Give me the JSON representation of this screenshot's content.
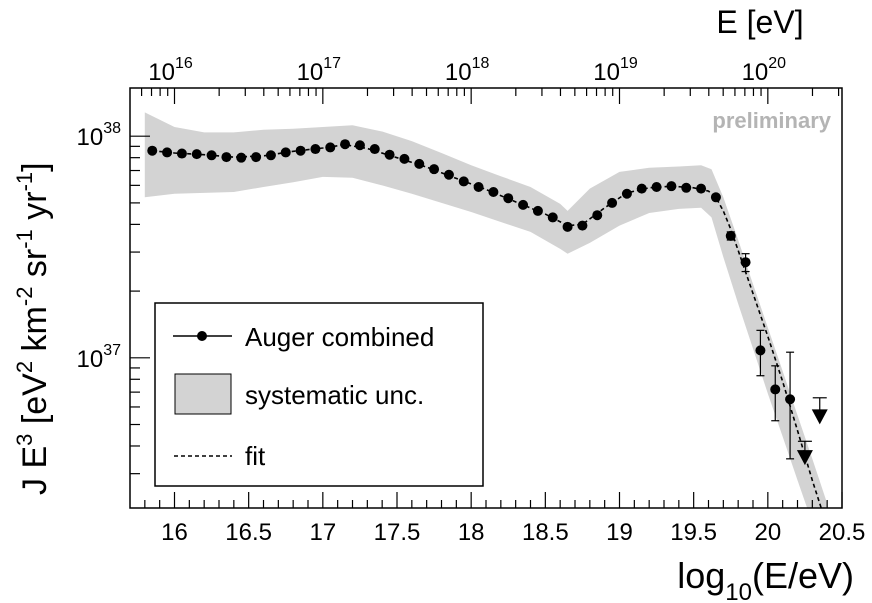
{
  "chart_data": {
    "type": "scatter",
    "title": "",
    "xlabel": {
      "base": "log",
      "sub": "10",
      "rest": "(E/eV)"
    },
    "ylabel": {
      "parts": [
        "J E",
        "3",
        " [eV",
        "2",
        " km",
        "-2",
        " sr",
        "-1",
        " yr",
        "-1",
        "]"
      ]
    },
    "top_axis_label": "E [eV]",
    "annotation": "preliminary",
    "xlim": [
      15.7,
      20.5
    ],
    "ylim": [
      2.1e+36,
      1.65e+38
    ],
    "yscale": "log",
    "x_ticks": [
      "16",
      "16.5",
      "17",
      "17.5",
      "18",
      "18.5",
      "19",
      "19.5",
      "20",
      "20.5"
    ],
    "x_tick_values": [
      16,
      16.5,
      17,
      17.5,
      18,
      18.5,
      19,
      19.5,
      20,
      20.5
    ],
    "y_ticks": [
      {
        "base": "10",
        "exp": "38",
        "value": 1e+38
      },
      {
        "base": "10",
        "exp": "37",
        "value": 1e+37
      }
    ],
    "top_ticks": [
      {
        "base": "10",
        "exp": "16",
        "value": 16
      },
      {
        "base": "10",
        "exp": "17",
        "value": 17
      },
      {
        "base": "10",
        "exp": "18",
        "value": 18
      },
      {
        "base": "10",
        "exp": "19",
        "value": 19
      },
      {
        "base": "10",
        "exp": "20",
        "value": 20
      }
    ],
    "legend": {
      "placement": "bottom-left",
      "entries": [
        "Auger combined",
        "systematic unc.",
        "fit"
      ]
    },
    "grid": false,
    "series": [
      {
        "name": "Auger combined",
        "points": [
          {
            "x": 15.85,
            "y": 8.6e+37
          },
          {
            "x": 15.95,
            "y": 8.45e+37
          },
          {
            "x": 16.05,
            "y": 8.35e+37
          },
          {
            "x": 16.15,
            "y": 8.3e+37
          },
          {
            "x": 16.25,
            "y": 8.2e+37
          },
          {
            "x": 16.35,
            "y": 8.05e+37
          },
          {
            "x": 16.45,
            "y": 8e+37
          },
          {
            "x": 16.55,
            "y": 8.05e+37
          },
          {
            "x": 16.65,
            "y": 8.2e+37
          },
          {
            "x": 16.75,
            "y": 8.45e+37
          },
          {
            "x": 16.85,
            "y": 8.6e+37
          },
          {
            "x": 16.95,
            "y": 8.75e+37
          },
          {
            "x": 17.05,
            "y": 8.9e+37
          },
          {
            "x": 17.15,
            "y": 9.2e+37
          },
          {
            "x": 17.25,
            "y": 9.1e+37
          },
          {
            "x": 17.35,
            "y": 8.75e+37
          },
          {
            "x": 17.45,
            "y": 8.25e+37
          },
          {
            "x": 17.55,
            "y": 7.9e+37
          },
          {
            "x": 17.65,
            "y": 7.5e+37
          },
          {
            "x": 17.75,
            "y": 7.1e+37
          },
          {
            "x": 17.85,
            "y": 6.7e+37
          },
          {
            "x": 17.95,
            "y": 6.25e+37
          },
          {
            "x": 18.05,
            "y": 5.9e+37
          },
          {
            "x": 18.15,
            "y": 5.6e+37
          },
          {
            "x": 18.25,
            "y": 5.25e+37
          },
          {
            "x": 18.35,
            "y": 4.9e+37
          },
          {
            "x": 18.45,
            "y": 4.6e+37
          },
          {
            "x": 18.55,
            "y": 4.3e+37
          },
          {
            "x": 18.65,
            "y": 3.9e+37
          },
          {
            "x": 18.75,
            "y": 3.95e+37
          },
          {
            "x": 18.85,
            "y": 4.4e+37
          },
          {
            "x": 18.95,
            "y": 5e+37
          },
          {
            "x": 19.05,
            "y": 5.5e+37
          },
          {
            "x": 19.15,
            "y": 5.8e+37
          },
          {
            "x": 19.25,
            "y": 5.9e+37
          },
          {
            "x": 19.35,
            "y": 5.95e+37
          },
          {
            "x": 19.45,
            "y": 5.85e+37
          },
          {
            "x": 19.55,
            "y": 5.8e+37
          },
          {
            "x": 19.65,
            "y": 5.3e+37
          },
          {
            "x": 19.75,
            "y": 3.55e+37,
            "err": 1.5e+36
          },
          {
            "x": 19.85,
            "y": 2.7e+37,
            "err": 2.5e+36
          },
          {
            "x": 19.95,
            "y": 1.08e+37,
            "err": 2.5e+36
          },
          {
            "x": 20.05,
            "y": 7.2e+36,
            "err": 2e+36
          },
          {
            "x": 20.15,
            "y": 6.5e+36,
            "err_up": 4.1e+36,
            "err_down": 3e+36
          }
        ],
        "upper_limits": [
          {
            "x": 20.25,
            "y": 3.6e+36,
            "top": 4.2e+36
          },
          {
            "x": 20.35,
            "y": 5.5e+36,
            "top": 6.6e+36
          }
        ]
      },
      {
        "name": "systematic unc.",
        "x": [
          15.8,
          16.0,
          16.2,
          16.4,
          16.6,
          16.8,
          17.0,
          17.2,
          17.4,
          17.6,
          17.8,
          18.0,
          18.2,
          18.4,
          18.6,
          18.65,
          18.8,
          19.0,
          19.2,
          19.4,
          19.55,
          19.62,
          19.7,
          19.8,
          19.9,
          20.0,
          20.1,
          20.2,
          20.3,
          20.4
        ],
        "upper": [
          1.28e+38,
          1.1e+38,
          1.04e+38,
          1.04e+38,
          1.07e+38,
          1.08e+38,
          1.1e+38,
          1.12e+38,
          1.05e+38,
          9.5e+37,
          8.4e+37,
          7.4e+37,
          6.6e+37,
          5.9e+37,
          4.95e+37,
          4.6e+37,
          5.8e+37,
          6.9e+37,
          7.2e+37,
          7.3e+37,
          7.4e+37,
          7.1e+37,
          5.3e+37,
          3.4e+37,
          2.15e+37,
          1.37e+37,
          8.7e+36,
          5.5e+36,
          3.5e+36,
          2.2e+36
        ],
        "lower": [
          5.3e+37,
          5.5e+37,
          5.55e+37,
          5.6e+37,
          5.9e+37,
          6.2e+37,
          6.55e+37,
          6.5e+37,
          6e+37,
          5.5e+37,
          5e+37,
          4.55e+37,
          4.1e+37,
          3.7e+37,
          3.1e+37,
          2.95e+37,
          3.3e+37,
          3.95e+37,
          4.5e+37,
          4.7e+37,
          4.75e+37,
          4.3e+37,
          2.85e+37,
          1.75e+37,
          1.1e+37,
          6.9e+36,
          4.4e+36,
          2.8e+36,
          1.8e+36,
          1.2e+36
        ]
      },
      {
        "name": "fit",
        "x": [
          15.85,
          16.0,
          16.2,
          16.4,
          16.6,
          16.8,
          17.0,
          17.15,
          17.3,
          17.5,
          17.7,
          17.9,
          18.1,
          18.3,
          18.5,
          18.65,
          18.75,
          18.9,
          19.05,
          19.2,
          19.35,
          19.5,
          19.6,
          19.65,
          19.7,
          19.75,
          19.8,
          19.9,
          20.0,
          20.1,
          20.2,
          20.3,
          20.36
        ],
        "y": [
          8.6e+37,
          8.4e+37,
          8.25e+37,
          8.05e+37,
          8.15e+37,
          8.55e+37,
          8.85e+37,
          9.15e+37,
          8.8e+37,
          8e+37,
          7.25e+37,
          6.45e+37,
          5.75e+37,
          5.05e+37,
          4.45e+37,
          3.95e+37,
          4e+37,
          4.75e+37,
          5.55e+37,
          5.85e+37,
          5.95e+37,
          5.85e+37,
          5.65e+37,
          5.3e+37,
          4.6e+37,
          3.8e+37,
          3.05e+37,
          1.95e+37,
          1.25e+37,
          7.8e+36,
          4.7e+36,
          2.8e+36,
          2.1e+36
        ]
      }
    ]
  }
}
